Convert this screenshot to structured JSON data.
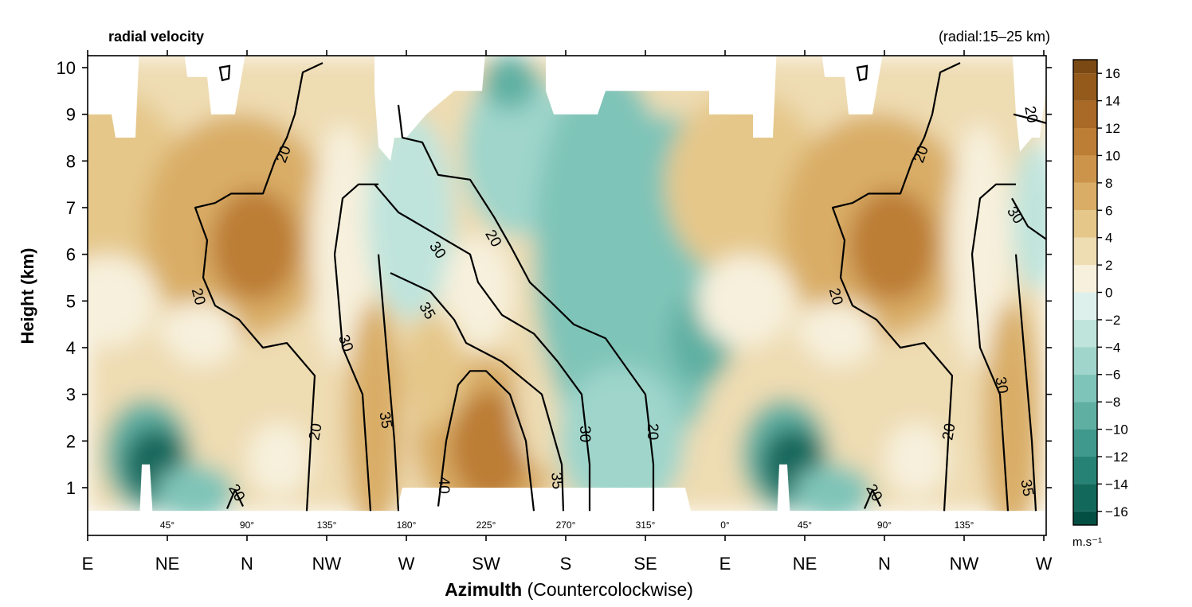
{
  "chart_data": {
    "type": "heatmap",
    "title": "radial velocity",
    "subtitle": "(radial:15–25 km)",
    "xlabel_bold": "Azimulth",
    "xlabel_rest": "(Countercolockwise)",
    "ylabel": "Height (km)",
    "ylim": [
      0.3,
      10.2
    ],
    "yticks": [
      1,
      2,
      3,
      4,
      5,
      6,
      7,
      8,
      9,
      10
    ],
    "xlim": [
      0,
      12
    ],
    "xticks": [
      {
        "x": 0,
        "label": "E"
      },
      {
        "x": 1,
        "label": "NE"
      },
      {
        "x": 2,
        "label": "N"
      },
      {
        "x": 3,
        "label": "NW"
      },
      {
        "x": 4,
        "label": "W"
      },
      {
        "x": 5,
        "label": "SW"
      },
      {
        "x": 6,
        "label": "S"
      },
      {
        "x": 7,
        "label": "SE"
      },
      {
        "x": 8,
        "label": "E"
      },
      {
        "x": 9,
        "label": "NE"
      },
      {
        "x": 10,
        "label": "N"
      },
      {
        "x": 11,
        "label": "NW"
      },
      {
        "x": 12,
        "label": "W"
      }
    ],
    "degree_labels": [
      {
        "x": 1,
        "label": "45°"
      },
      {
        "x": 2,
        "label": "90°"
      },
      {
        "x": 3,
        "label": "135°"
      },
      {
        "x": 4,
        "label": "180°"
      },
      {
        "x": 5,
        "label": "225°"
      },
      {
        "x": 6,
        "label": "270°"
      },
      {
        "x": 7,
        "label": "315°"
      },
      {
        "x": 8,
        "label": "0°"
      },
      {
        "x": 9,
        "label": "45°"
      },
      {
        "x": 10,
        "label": "90°"
      },
      {
        "x": 11,
        "label": "135°"
      }
    ],
    "colorbar": {
      "unit": "m.s⁻¹",
      "range": [
        -17,
        17
      ],
      "ticks": [
        16,
        14,
        12,
        10,
        8,
        6,
        4,
        2,
        0,
        -2,
        -4,
        -6,
        -8,
        -10,
        -12,
        -14,
        -16
      ],
      "tick_labels": [
        "16",
        "14",
        "12",
        "10",
        "8",
        "6",
        "4",
        "2",
        "0",
        "−2",
        "−4",
        "−6",
        "−8",
        "−10",
        "−12",
        "−14",
        "−16"
      ],
      "colors_positive": [
        "#f7f0dc",
        "#eedcb2",
        "#e5c78a",
        "#d9ad66",
        "#cc944a",
        "#bc7d34",
        "#a86a26",
        "#935a1c",
        "#7b4a14"
      ],
      "colors_negative": [
        "#ddf0ec",
        "#bfe4dc",
        "#9fd5cb",
        "#7fc4b8",
        "#5fb0a3",
        "#3f998c",
        "#268274",
        "#12685b",
        "#044f44"
      ]
    },
    "contour_labels": [
      {
        "x": 2.45,
        "y": 8.15,
        "text": "20",
        "rot": -70
      },
      {
        "x": 1.4,
        "y": 5.1,
        "text": "20",
        "rot": 75
      },
      {
        "x": 3.25,
        "y": 4.1,
        "text": "30",
        "rot": 70
      },
      {
        "x": 2.85,
        "y": 2.2,
        "text": "20",
        "rot": -80
      },
      {
        "x": 3.75,
        "y": 2.45,
        "text": "35",
        "rot": 80
      },
      {
        "x": 1.88,
        "y": 0.9,
        "text": "20",
        "rot": 60
      },
      {
        "x": 4.4,
        "y": 6.1,
        "text": "30",
        "rot": 55
      },
      {
        "x": 5.1,
        "y": 6.35,
        "text": "20",
        "rot": 60
      },
      {
        "x": 4.27,
        "y": 4.8,
        "text": "35",
        "rot": 60
      },
      {
        "x": 4.48,
        "y": 1.05,
        "text": "40",
        "rot": 90
      },
      {
        "x": 5.9,
        "y": 1.15,
        "text": "35",
        "rot": 85
      },
      {
        "x": 6.25,
        "y": 2.15,
        "text": "30",
        "rot": 90
      },
      {
        "x": 7.1,
        "y": 2.2,
        "text": "20",
        "rot": 90
      },
      {
        "x": 10.45,
        "y": 8.15,
        "text": "20",
        "rot": -70
      },
      {
        "x": 9.4,
        "y": 5.1,
        "text": "20",
        "rot": 75
      },
      {
        "x": 11.48,
        "y": 3.2,
        "text": "30",
        "rot": 80
      },
      {
        "x": 10.8,
        "y": 2.2,
        "text": "20",
        "rot": -80
      },
      {
        "x": 9.88,
        "y": 0.9,
        "text": "20",
        "rot": 60
      },
      {
        "x": 11.85,
        "y": 9.0,
        "text": "20",
        "rot": 80
      },
      {
        "x": 11.65,
        "y": 6.85,
        "text": "30",
        "rot": 55
      },
      {
        "x": 11.8,
        "y": 1.0,
        "text": "35",
        "rot": 80
      }
    ]
  }
}
